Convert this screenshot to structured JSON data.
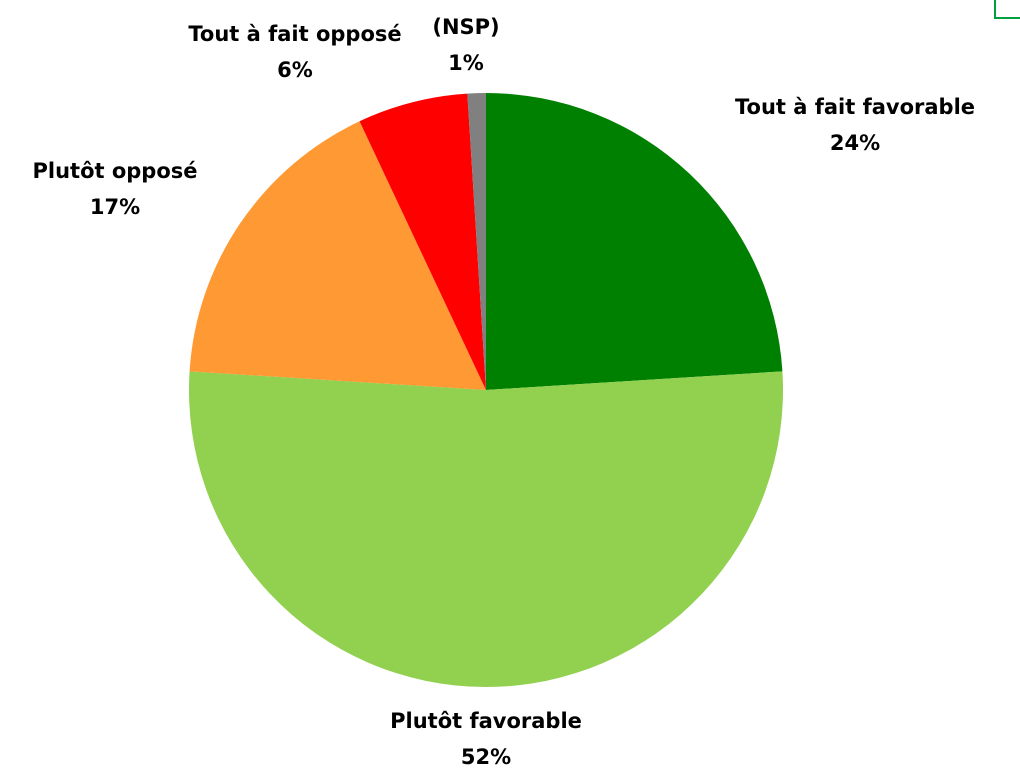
{
  "chart_data": {
    "type": "pie",
    "categories": [
      "Tout à fait favorable",
      "Plutôt favorable",
      "Plutôt opposé",
      "Tout à fait opposé",
      "(NSP)"
    ],
    "values": [
      24,
      52,
      17,
      6,
      1
    ],
    "value_labels": [
      "24%",
      "52%",
      "17%",
      "6%",
      "1%"
    ],
    "colors": [
      "#008000",
      "#92d050",
      "#ff9933",
      "#ff0000",
      "#808080"
    ]
  }
}
